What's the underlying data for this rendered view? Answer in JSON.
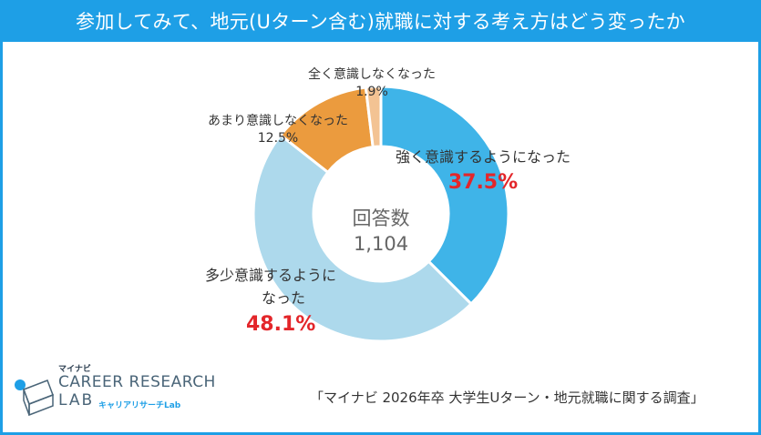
{
  "title": "参加してみて、地元(Uターン含む)就職に対する考え方はどう変ったか",
  "center_label": {
    "line1": "回答数",
    "line2": "1,104"
  },
  "source": "「マイナビ 2026年卒 大学生Uターン・地元就職に関する調査」",
  "logo": {
    "small": "マイナビ",
    "main": "CAREER RESEARCH",
    "lab": "LAB",
    "sub": "キャリアリサーチLab"
  },
  "colors": {
    "frame": "#1e9fe6",
    "strong": "#3fb4e8",
    "somewhat": "#add9ec",
    "not_much": "#eb9b3e",
    "not_at_all": "#f3c393",
    "highlight": "#e3262a"
  },
  "chart_data": {
    "type": "pie",
    "subtype": "donut",
    "title": "参加してみて、地元(Uターン含む)就職に対する考え方はどう変ったか",
    "total_responses": "1,104",
    "slices": [
      {
        "label": "強く意識するようになった",
        "value": 37.5,
        "value_label": "37.5%",
        "color": "#3fb4e8",
        "highlight": true
      },
      {
        "label": "多少意識するようになった",
        "label_lines": [
          "多少意識するように",
          "なった"
        ],
        "value": 48.1,
        "value_label": "48.1%",
        "color": "#add9ec",
        "highlight": true
      },
      {
        "label": "あまり意識しなくなった",
        "value": 12.5,
        "value_label": "12.5%",
        "color": "#eb9b3e",
        "highlight": false
      },
      {
        "label": "全く意識しなくなった",
        "value": 1.9,
        "value_label": "1.9%",
        "color": "#f3c393",
        "highlight": false
      }
    ]
  }
}
